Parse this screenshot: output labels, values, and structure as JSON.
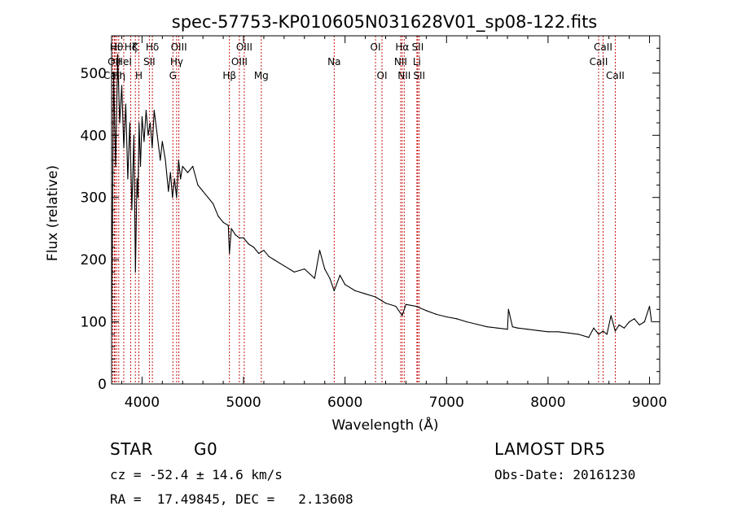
{
  "chart_data": {
    "type": "line",
    "title": "spec-57753-KP010605N031628V01_sp08-122.fits",
    "xlabel": "Wavelength (Å)",
    "ylabel": "Flux (relative)",
    "xlim": [
      3700,
      9100
    ],
    "ylim": [
      0,
      560
    ],
    "x_ticks": [
      4000,
      5000,
      6000,
      7000,
      8000,
      9000
    ],
    "y_ticks": [
      0,
      100,
      200,
      300,
      400,
      500
    ],
    "grid": false,
    "series": [
      {
        "x": [
          3700,
          3720,
          3740,
          3760,
          3780,
          3800,
          3820,
          3840,
          3860,
          3880,
          3900,
          3920,
          3935,
          3950,
          3960,
          3970,
          3985,
          4000,
          4020,
          4040,
          4060,
          4080,
          4100,
          4120,
          4150,
          4180,
          4200,
          4230,
          4260,
          4280,
          4300,
          4320,
          4340,
          4360,
          4380,
          4400,
          4450,
          4500,
          4550,
          4600,
          4650,
          4700,
          4750,
          4800,
          4850,
          4861,
          4880,
          4920,
          4960,
          5000,
          5050,
          5100,
          5150,
          5200,
          5250,
          5300,
          5400,
          5500,
          5600,
          5700,
          5750,
          5800,
          5850,
          5893,
          5950,
          6000,
          6100,
          6200,
          6300,
          6400,
          6500,
          6563,
          6600,
          6700,
          6800,
          6900,
          7000,
          7100,
          7200,
          7300,
          7400,
          7500,
          7600,
          7610,
          7650,
          7700,
          7800,
          7900,
          8000,
          8100,
          8200,
          8300,
          8400,
          8450,
          8498,
          8542,
          8580,
          8620,
          8662,
          8700,
          8750,
          8800,
          8850,
          8900,
          8950,
          9000,
          9020
        ],
        "values": [
          80,
          500,
          350,
          530,
          420,
          480,
          380,
          450,
          330,
          420,
          280,
          400,
          180,
          330,
          300,
          420,
          350,
          430,
          390,
          440,
          400,
          420,
          380,
          440,
          400,
          360,
          390,
          360,
          310,
          340,
          300,
          330,
          300,
          360,
          330,
          350,
          340,
          350,
          320,
          310,
          300,
          290,
          270,
          260,
          255,
          210,
          250,
          240,
          235,
          235,
          225,
          220,
          210,
          215,
          205,
          200,
          190,
          180,
          185,
          170,
          215,
          185,
          170,
          150,
          175,
          160,
          150,
          145,
          140,
          130,
          125,
          110,
          128,
          125,
          118,
          112,
          108,
          105,
          100,
          96,
          92,
          90,
          88,
          120,
          92,
          90,
          88,
          86,
          84,
          84,
          82,
          80,
          75,
          90,
          80,
          85,
          80,
          110,
          85,
          95,
          90,
          100,
          105,
          95,
          100,
          125,
          100
        ]
      }
    ],
    "lines": [
      {
        "x": 3711,
        "label": "CaII",
        "row": 2
      },
      {
        "x": 3727,
        "label": "OII",
        "row": 1
      },
      {
        "x": 3734,
        "label": "Hι",
        "row": 0
      },
      {
        "x": 3750,
        "label": "Hθ",
        "row": 0
      },
      {
        "x": 3771,
        "label": "Hη",
        "row": 2
      },
      {
        "x": 3820,
        "label": "HeI",
        "row": 1
      },
      {
        "x": 3889,
        "label": "Hζ",
        "row": 0
      },
      {
        "x": 3934,
        "label": "K",
        "row": 0
      },
      {
        "x": 3969,
        "label": "H",
        "row": 2
      },
      {
        "x": 4072,
        "label": "SII",
        "row": 1
      },
      {
        "x": 4102,
        "label": "Hδ",
        "row": 0
      },
      {
        "x": 4304,
        "label": "G",
        "row": 2
      },
      {
        "x": 4341,
        "label": "Hγ",
        "row": 1
      },
      {
        "x": 4363,
        "label": "OIII",
        "row": 0
      },
      {
        "x": 4861,
        "label": "Hβ",
        "row": 2
      },
      {
        "x": 4959,
        "label": "OIII",
        "row": 1
      },
      {
        "x": 5007,
        "label": "OIII",
        "row": 0
      },
      {
        "x": 5175,
        "label": "Mg",
        "row": 2
      },
      {
        "x": 5893,
        "label": "Na",
        "row": 1
      },
      {
        "x": 6300,
        "label": "OI",
        "row": 0
      },
      {
        "x": 6364,
        "label": "OI",
        "row": 2
      },
      {
        "x": 6548,
        "label": "NII",
        "row": 1
      },
      {
        "x": 6563,
        "label": "Hα",
        "row": 0
      },
      {
        "x": 6583,
        "label": "NII",
        "row": 2
      },
      {
        "x": 6708,
        "label": "Li",
        "row": 1
      },
      {
        "x": 6716,
        "label": "SII",
        "row": 0
      },
      {
        "x": 6731,
        "label": "SII",
        "row": 2
      },
      {
        "x": 8498,
        "label": "CaII",
        "row": 1
      },
      {
        "x": 8542,
        "label": "CaII",
        "row": 0
      },
      {
        "x": 8662,
        "label": "CaII",
        "row": 2
      }
    ],
    "line_color": "#c00000"
  },
  "info": {
    "object_class": "STAR",
    "subclass": "G0",
    "survey": "LAMOST DR5",
    "cz": "cz = -52.4 ± 14.6 km/s",
    "obs_date": "Obs-Date: 20161230",
    "coords": "RA =  17.49845, DEC =   2.13608"
  }
}
